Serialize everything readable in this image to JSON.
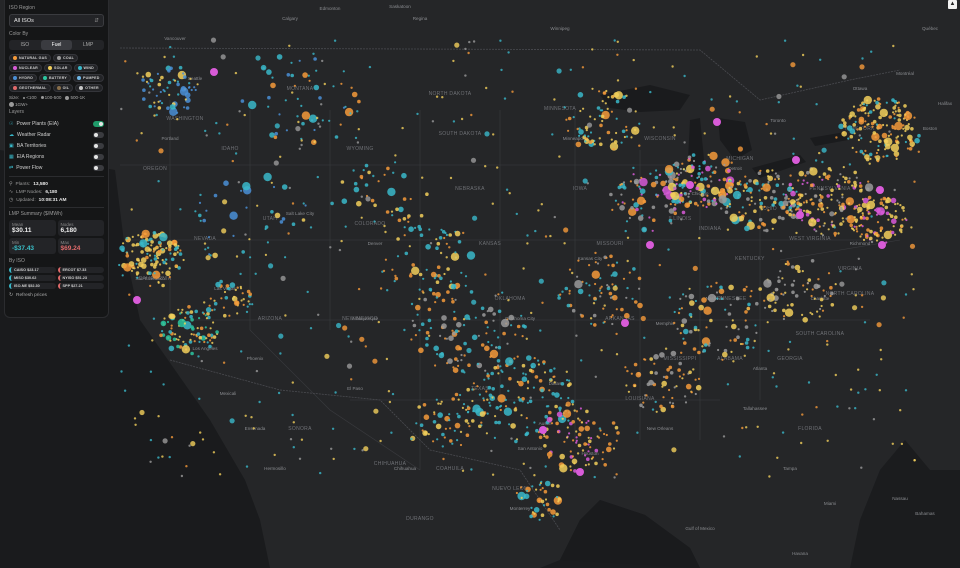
{
  "panel": {
    "region_title": "ISO Region",
    "region_value": "All ISOs",
    "color_by_title": "Color By",
    "color_tabs": [
      "ISO",
      "Fuel",
      "LMP"
    ],
    "fuels": [
      {
        "label": "NATURAL GAS",
        "color": "#f59a3a"
      },
      {
        "label": "COAL",
        "color": "#9a9a9a"
      },
      {
        "label": "NUCLEAR",
        "color": "#d85bd8"
      },
      {
        "label": "SOLAR",
        "color": "#f2cf5b"
      },
      {
        "label": "WIND",
        "color": "#39b8c9"
      },
      {
        "label": "HYDRO",
        "color": "#4a8fd6"
      },
      {
        "label": "BATTERY",
        "color": "#2cc6a0"
      },
      {
        "label": "PUMPED",
        "color": "#6fb7e8"
      },
      {
        "label": "GEOTHERMAL",
        "color": "#e06a6a"
      },
      {
        "label": "OIL",
        "color": "#8a6f4a"
      },
      {
        "label": "OTHER",
        "color": "#c7c7c7"
      }
    ],
    "size_title": "Size:",
    "sizes": [
      "<100",
      "100-500",
      "500-1K",
      "1GW+"
    ],
    "layers_title": "Layers",
    "layers": [
      {
        "label": "Power Plants (EIA)",
        "icon": "plant-icon",
        "on": true
      },
      {
        "label": "Weather Radar",
        "icon": "cloud-icon",
        "on": false
      },
      {
        "label": "BA Territories",
        "icon": "territory-icon",
        "on": false
      },
      {
        "label": "EIA Regions",
        "icon": "region-icon",
        "on": false
      },
      {
        "label": "Power Flow",
        "icon": "flow-icon",
        "on": false
      }
    ],
    "stats": {
      "plants_label": "Plants:",
      "plants_value": "13,580",
      "nodes_label": "LMP Nodes:",
      "nodes_value": "6,180",
      "updated_label": "Updated:",
      "updated_value": "10:08:31 AM"
    },
    "lmp_title": "LMP Summary ($/MWh)",
    "lmp": {
      "mean_label": "Mean",
      "mean_value": "$30.11",
      "nodes_label": "Nodes",
      "nodes_value": "6,180",
      "min_label": "Min",
      "min_value": "-$37.43",
      "max_label": "Max",
      "max_value": "$69.24"
    },
    "by_iso_title": "By ISO",
    "isos": [
      {
        "label": "CAISO $23.17",
        "color": "#39b8c9"
      },
      {
        "label": "ERCOT $7.33",
        "color": "#e06a6a"
      },
      {
        "label": "MISO $30.62",
        "color": "#39b8c9"
      },
      {
        "label": "NYISO $51.23",
        "color": "#e06a6a"
      },
      {
        "label": "ISO-NE $52.30",
        "color": "#39b8c9"
      },
      {
        "label": "SPP $27.21",
        "color": "#e06a6a"
      }
    ],
    "refresh_label": "Refresh prices"
  },
  "map": {
    "states": [
      "WASHINGTON",
      "OREGON",
      "IDAHO",
      "MONTANA",
      "WYOMING",
      "NEVADA",
      "UTAH",
      "COLORADO",
      "CALIFORNIA",
      "ARIZONA",
      "NEW MEXICO",
      "NORTH DAKOTA",
      "SOUTH DAKOTA",
      "NEBRASKA",
      "KANSAS",
      "OKLAHOMA",
      "TEXAS",
      "MINNESOTA",
      "IOWA",
      "MISSOURI",
      "ARKANSAS",
      "LOUISIANA",
      "WISCONSIN",
      "ILLINOIS",
      "MISSISSIPPI",
      "ALABAMA",
      "GEORGIA",
      "MICHIGAN",
      "INDIANA",
      "OHIO",
      "KENTUCKY",
      "TENNESSEE",
      "FLORIDA",
      "PENNSYLVANIA",
      "NEW YORK",
      "VIRGINIA",
      "NORTH CAROLINA",
      "SOUTH CAROLINA",
      "WEST VIRGINIA",
      "CHIHUAHUA",
      "SONORA",
      "COAHUILA",
      "NUEVO LEON",
      "DURANGO"
    ],
    "cities": [
      "Toronto",
      "Chicago",
      "Denver",
      "Houston",
      "Dallas",
      "Atlanta",
      "Miami",
      "New Orleans",
      "Phoenix",
      "San Francisco",
      "Los Angeles",
      "Seattle",
      "Boston",
      "Montréal",
      "Ottawa",
      "Detroit",
      "Tampa",
      "Tallahassee",
      "Oklahoma City",
      "San Antonio",
      "Austin",
      "Memphis",
      "Nashville",
      "Kansas City",
      "Minneapolis",
      "Salt Lake City",
      "Portland",
      "Las Vegas",
      "Albuquerque",
      "El Paso",
      "Charlotte",
      "Richmond",
      "Regina",
      "Winnipeg",
      "Calgary",
      "Edmonton",
      "Saskatoon",
      "Vancouver",
      "Monterrey",
      "Chihuahua",
      "Hermosillo",
      "Ensenada",
      "Mexicali",
      "Havana",
      "Nassau",
      "Bahamas",
      "Gulf of Mexico",
      "Québec",
      "Halifax"
    ],
    "gulf_label": "Gulf of Mexico"
  }
}
